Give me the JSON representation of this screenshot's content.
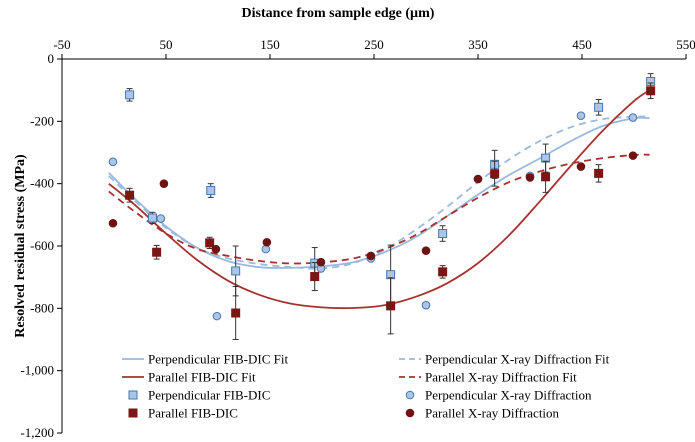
{
  "chart_data": {
    "type": "scatter",
    "xlabel": "Distance from sample edge (µm)",
    "ylabel": "Resolved residual stress (MPa)",
    "xlim": [
      -50,
      550
    ],
    "ylim": [
      -1200,
      0
    ],
    "x_ticks": [
      "-50",
      "50",
      "150",
      "250",
      "350",
      "450",
      "550"
    ],
    "x_tick_values": [
      -50,
      50,
      150,
      250,
      350,
      450,
      550
    ],
    "y_ticks": [
      "0",
      "-200",
      "-400",
      "-600",
      "-800",
      "-1,000",
      "-1,200"
    ],
    "y_tick_values": [
      0,
      -200,
      -400,
      -600,
      -800,
      -1000,
      -1200
    ],
    "x_axis_position": "top",
    "grid": false,
    "legend_position": "bottom",
    "colors": {
      "perp_fit": "#9ab9df",
      "par_fit": "#a8312f",
      "perp_marker_fill": "#a9c6e8",
      "perp_marker_edge": "#4a76a8",
      "par_marker": "#7a1614",
      "xrd_perp_fill": "#a9c6e8",
      "xrd_par_fill": "#6e1212"
    },
    "series": [
      {
        "name": "Perpendicular FIB-DIC Fit",
        "style": "solid-line",
        "points": [
          [
            -5,
            -365
          ],
          [
            20,
            -448
          ],
          [
            50,
            -537
          ],
          [
            80,
            -606
          ],
          [
            110,
            -649
          ],
          [
            140,
            -668
          ],
          [
            170,
            -670
          ],
          [
            200,
            -665
          ],
          [
            230,
            -652
          ],
          [
            260,
            -620
          ],
          [
            290,
            -572
          ],
          [
            320,
            -505
          ],
          [
            350,
            -435
          ],
          [
            380,
            -372
          ],
          [
            410,
            -318
          ],
          [
            440,
            -262
          ],
          [
            470,
            -215
          ],
          [
            500,
            -190
          ],
          [
            515,
            -190
          ]
        ]
      },
      {
        "name": "Perpendicular X-ray Diffraction Fit",
        "style": "dashed-line",
        "points": [
          [
            -5,
            -375
          ],
          [
            20,
            -455
          ],
          [
            50,
            -542
          ],
          [
            80,
            -606
          ],
          [
            110,
            -640
          ],
          [
            140,
            -658
          ],
          [
            170,
            -668
          ],
          [
            200,
            -672
          ],
          [
            230,
            -655
          ],
          [
            260,
            -612
          ],
          [
            290,
            -548
          ],
          [
            320,
            -475
          ],
          [
            350,
            -395
          ],
          [
            380,
            -322
          ],
          [
            410,
            -262
          ],
          [
            440,
            -218
          ],
          [
            470,
            -193
          ],
          [
            500,
            -185
          ],
          [
            515,
            -185
          ]
        ]
      },
      {
        "name": "Parallel FIB-DIC Fit",
        "style": "solid-line",
        "points": [
          [
            -5,
            -400
          ],
          [
            20,
            -468
          ],
          [
            50,
            -560
          ],
          [
            80,
            -645
          ],
          [
            110,
            -712
          ],
          [
            140,
            -757
          ],
          [
            170,
            -785
          ],
          [
            200,
            -797
          ],
          [
            230,
            -799
          ],
          [
            260,
            -790
          ],
          [
            290,
            -763
          ],
          [
            320,
            -720
          ],
          [
            350,
            -655
          ],
          [
            380,
            -565
          ],
          [
            410,
            -455
          ],
          [
            440,
            -340
          ],
          [
            470,
            -230
          ],
          [
            500,
            -135
          ],
          [
            515,
            -100
          ]
        ]
      },
      {
        "name": "Parallel X-ray Diffraction Fit",
        "style": "dashed-line",
        "points": [
          [
            -5,
            -425
          ],
          [
            20,
            -490
          ],
          [
            50,
            -560
          ],
          [
            80,
            -610
          ],
          [
            110,
            -632
          ],
          [
            140,
            -648
          ],
          [
            170,
            -656
          ],
          [
            200,
            -652
          ],
          [
            230,
            -640
          ],
          [
            260,
            -610
          ],
          [
            290,
            -565
          ],
          [
            320,
            -505
          ],
          [
            350,
            -445
          ],
          [
            380,
            -395
          ],
          [
            410,
            -360
          ],
          [
            440,
            -335
          ],
          [
            470,
            -318
          ],
          [
            500,
            -308
          ],
          [
            515,
            -307
          ]
        ]
      },
      {
        "name": "Perpendicular FIB-DIC",
        "style": "square-marker",
        "points": [
          [
            15,
            -115,
            20
          ],
          [
            37,
            -510,
            18
          ],
          [
            93,
            -422,
            22
          ],
          [
            117,
            -680,
            80
          ],
          [
            193,
            -655,
            50
          ],
          [
            266,
            -692,
            95
          ],
          [
            316,
            -560,
            25
          ],
          [
            366,
            -338,
            45
          ],
          [
            415,
            -318,
            45
          ],
          [
            466,
            -155,
            25
          ],
          [
            516,
            -72,
            25
          ]
        ]
      },
      {
        "name": "Perpendicular X-ray Diffraction",
        "style": "circle-marker",
        "points": [
          [
            -1,
            -330
          ],
          [
            45,
            -512
          ],
          [
            99,
            -825
          ],
          [
            146,
            -610
          ],
          [
            199,
            -672
          ],
          [
            247,
            -640
          ],
          [
            300,
            -790
          ],
          [
            350,
            -385
          ],
          [
            400,
            -375
          ],
          [
            449,
            -182
          ],
          [
            499,
            -188
          ]
        ]
      },
      {
        "name": "Parallel FIB-DIC",
        "style": "square-marker",
        "points": [
          [
            15,
            -437,
            22
          ],
          [
            41,
            -620,
            22
          ],
          [
            92,
            -590,
            18
          ],
          [
            117,
            -815,
            85
          ],
          [
            193,
            -698,
            45
          ],
          [
            266,
            -792,
            90
          ],
          [
            316,
            -683,
            20
          ],
          [
            366,
            -368,
            40
          ],
          [
            415,
            -378,
            50
          ],
          [
            466,
            -367,
            28
          ],
          [
            516,
            -102,
            25
          ]
        ]
      },
      {
        "name": "Parallel X-ray Diffraction",
        "style": "circle-marker",
        "points": [
          [
            -1,
            -527
          ],
          [
            48,
            -400
          ],
          [
            98,
            -610
          ],
          [
            147,
            -588
          ],
          [
            199,
            -652
          ],
          [
            247,
            -632
          ],
          [
            300,
            -615
          ],
          [
            350,
            -385
          ],
          [
            400,
            -380
          ],
          [
            449,
            -345
          ],
          [
            499,
            -310
          ]
        ]
      }
    ]
  }
}
